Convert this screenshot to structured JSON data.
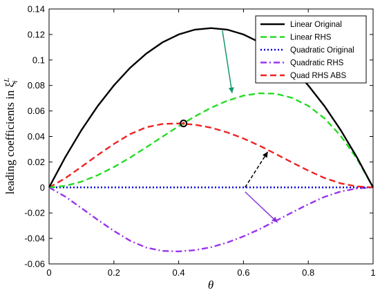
{
  "chart_data": {
    "type": "line",
    "xlabel": "θ",
    "ylabel": "leading coefficients in ξ",
    "ylabel_sup": "L",
    "ylabel_sub": "i",
    "xlim": [
      0,
      1
    ],
    "ylim": [
      -0.06,
      0.14
    ],
    "x_ticks": [
      "0",
      "0.2",
      "0.4",
      "0.6",
      "0.8",
      "1"
    ],
    "y_ticks": [
      "-0.06",
      "-0.04",
      "-0.02",
      "0",
      "0.02",
      "0.04",
      "0.06",
      "0.08",
      "0.1",
      "0.12",
      "0.14"
    ],
    "x": [
      0,
      0.05,
      0.1,
      0.15,
      0.2,
      0.25,
      0.3,
      0.35,
      0.4,
      0.45,
      0.5,
      0.55,
      0.6,
      0.65,
      0.7,
      0.75,
      0.8,
      0.85,
      0.9,
      0.95,
      1
    ],
    "series": [
      {
        "name": "Linear Original",
        "color": "#000000",
        "dash": "solid",
        "values": [
          0,
          0.0237,
          0.045,
          0.0638,
          0.08,
          0.0938,
          0.105,
          0.1138,
          0.12,
          0.1238,
          0.125,
          0.1238,
          0.12,
          0.1138,
          0.105,
          0.0938,
          0.08,
          0.0638,
          0.045,
          0.0237,
          0
        ]
      },
      {
        "name": "Linear RHS",
        "color": "#22dd22",
        "dash": "dashed",
        "values": [
          0,
          0.0012,
          0.0045,
          0.0096,
          0.016,
          0.0234,
          0.0315,
          0.0398,
          0.048,
          0.0557,
          0.0625,
          0.068,
          0.072,
          0.0739,
          0.0735,
          0.0703,
          0.064,
          0.0542,
          0.0405,
          0.0226,
          0
        ]
      },
      {
        "name": "Quadratic Original",
        "color": "#0000dd",
        "dash": "dotted",
        "values": [
          0,
          0,
          0,
          0,
          0,
          0,
          0,
          0,
          0,
          0,
          0,
          0,
          0,
          0,
          0,
          0,
          0,
          0,
          0,
          0,
          0
        ]
      },
      {
        "name": "Quadratic RHS",
        "color": "#9933ee",
        "dash": "dashdot",
        "values": [
          0,
          -0.0072,
          -0.0162,
          -0.0254,
          -0.0341,
          -0.0418,
          -0.0472,
          -0.0498,
          -0.0502,
          -0.0492,
          -0.0469,
          -0.0432,
          -0.0384,
          -0.0327,
          -0.0262,
          -0.0196,
          -0.0132,
          -0.0074,
          -0.0032,
          -0.0008,
          0
        ]
      },
      {
        "name": "Quad RHS ABS",
        "color": "#ee2222",
        "dash": "dashed",
        "values": [
          0,
          0.0072,
          0.0162,
          0.0254,
          0.0341,
          0.0418,
          0.0472,
          0.0498,
          0.0502,
          0.0492,
          0.0469,
          0.0432,
          0.0384,
          0.0327,
          0.0262,
          0.0196,
          0.0132,
          0.0074,
          0.0032,
          0.0008,
          0
        ]
      }
    ],
    "legend_position": "top-right",
    "marker": {
      "x": 0.415,
      "y": 0.0502
    },
    "annotations": [
      {
        "name": "green-arrow",
        "color": "#119966",
        "from": [
          0.535,
          0.123
        ],
        "to": [
          0.565,
          0.074
        ]
      },
      {
        "name": "black-dashed-arrow",
        "color": "#000000",
        "from": [
          0.605,
          0.0
        ],
        "to": [
          0.675,
          0.028
        ]
      },
      {
        "name": "purple-arrow",
        "color": "#8833dd",
        "from": [
          0.605,
          -0.0035
        ],
        "to": [
          0.705,
          -0.0275
        ]
      }
    ],
    "grid": false
  }
}
